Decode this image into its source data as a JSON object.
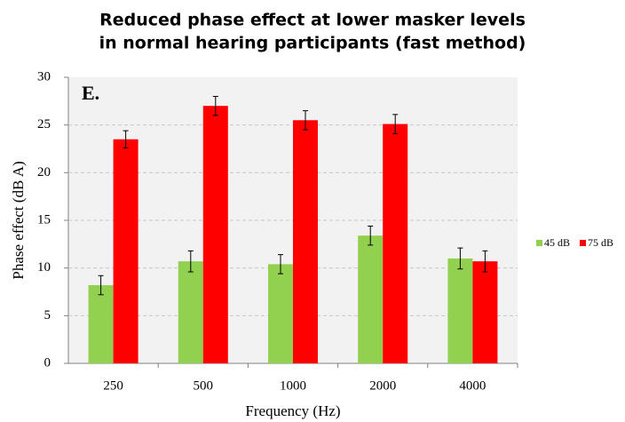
{
  "chart_data": {
    "type": "bar",
    "title": [
      "Reduced phase effect at lower masker levels",
      "in normal hearing participants (fast method)"
    ],
    "annotation": "E.",
    "x_label": "Frequency (Hz)",
    "y_label": "Phase effect (dB A)",
    "categories": [
      "250",
      "500",
      "1000",
      "2000",
      "4000"
    ],
    "series": [
      {
        "name": "45 dB",
        "color": "#92d050",
        "values": [
          8.2,
          10.7,
          10.4,
          13.4,
          11.0
        ],
        "errors": [
          1.0,
          1.1,
          1.0,
          1.0,
          1.1
        ]
      },
      {
        "name": "75 dB",
        "color": "#ff0000",
        "values": [
          23.5,
          27.0,
          25.5,
          25.1,
          10.7
        ],
        "errors": [
          0.9,
          1.0,
          1.0,
          1.0,
          1.1
        ]
      }
    ],
    "ylim": [
      0,
      30
    ],
    "yticks": [
      0,
      5,
      10,
      15,
      20,
      25,
      30
    ],
    "grid": true,
    "legend": "right"
  }
}
